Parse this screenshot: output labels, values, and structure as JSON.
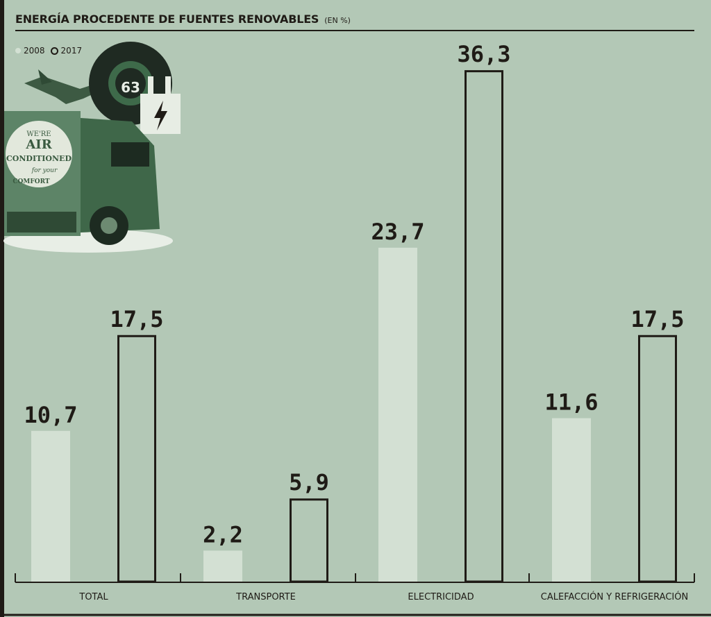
{
  "header": {
    "title": "ENERGÍA PROCEDENTE DE FUENTES RENOVABLES",
    "unit": "(EN %)"
  },
  "legend": {
    "items": [
      {
        "label": "2008",
        "style": "filled",
        "color": "#d3e0d3"
      },
      {
        "label": "2017",
        "style": "outline",
        "color": "#1f1b16"
      }
    ]
  },
  "illustration": {
    "truck_text": [
      "WE'RE",
      "AIR",
      "CONDITIONED",
      "for your",
      "COMFORT"
    ],
    "gauge_value": "63"
  },
  "chart_data": {
    "type": "bar",
    "categories": [
      "TOTAL",
      "TRANSPORTE",
      "ELECTRICIDAD",
      "CALEFACCIÓN Y REFRIGERACIÓN"
    ],
    "series": [
      {
        "name": "2008",
        "values": [
          10.7,
          2.2,
          23.7,
          11.6
        ],
        "labels": [
          "10,7",
          "2,2",
          "23,7",
          "11,6"
        ]
      },
      {
        "name": "2017",
        "values": [
          17.5,
          5.9,
          36.3,
          17.5
        ],
        "labels": [
          "17,5",
          "5,9",
          "36,3",
          "17,5"
        ]
      }
    ],
    "title": "ENERGÍA PROCEDENTE DE FUENTES RENOVABLES",
    "unit": "(EN %)",
    "ylim": [
      0,
      40
    ],
    "grid": false,
    "legend_position": "top-left",
    "colors": {
      "series_2008": "#d3e0d3",
      "series_2017_outline": "#1f1b16",
      "background": "#b3c8b6"
    }
  }
}
